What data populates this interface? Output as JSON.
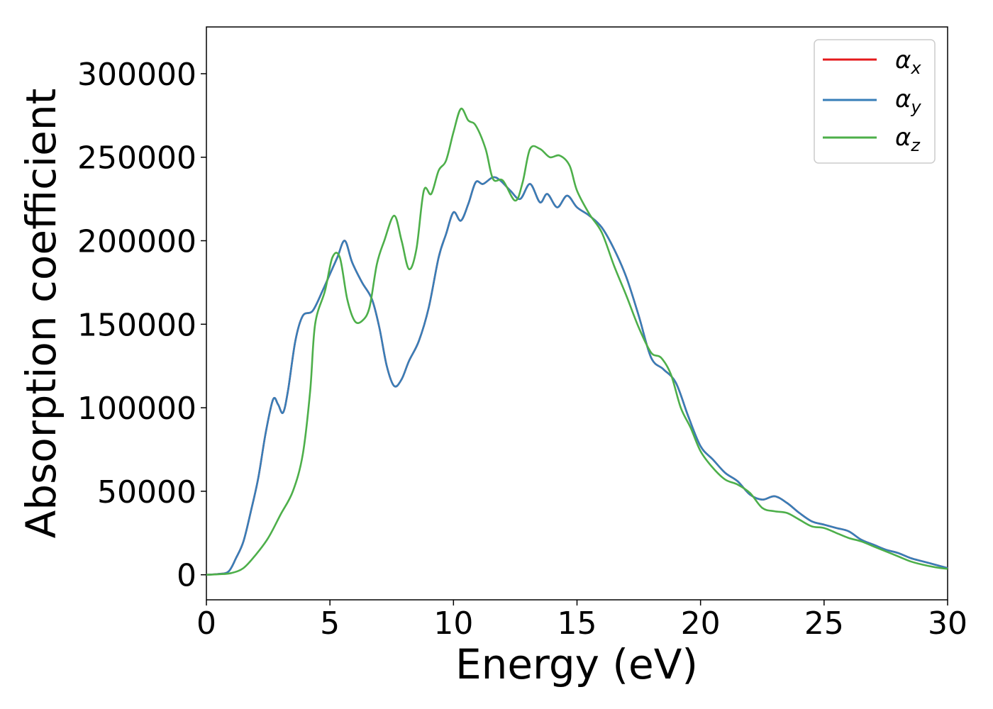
{
  "chart_data": {
    "type": "line",
    "title": "",
    "xlabel": "Energy (eV)",
    "ylabel": "Absorption coefficient",
    "xlim": [
      0,
      30
    ],
    "ylim": [
      -15000,
      328000
    ],
    "xticks": [
      0,
      5,
      10,
      15,
      20,
      25,
      30
    ],
    "yticks": [
      0,
      50000,
      100000,
      150000,
      200000,
      250000,
      300000
    ],
    "xtick_labels": [
      "0",
      "5",
      "10",
      "15",
      "20",
      "25",
      "30"
    ],
    "ytick_labels": [
      "0",
      "50000",
      "100000",
      "150000",
      "200000",
      "250000",
      "300000"
    ],
    "grid": false,
    "legend_position": "top-right",
    "legend": [
      {
        "symbol": "α",
        "sub": "x",
        "color": "#e41a1c"
      },
      {
        "symbol": "α",
        "sub": "y",
        "color": "#377eb8"
      },
      {
        "symbol": "α",
        "sub": "z",
        "color": "#4daf4a"
      }
    ],
    "series": [
      {
        "name": "αx",
        "color": "#e41a1c",
        "points": [
          [
            0,
            0
          ],
          [
            0.5,
            500
          ],
          [
            0.9,
            2000
          ],
          [
            1.2,
            10000
          ],
          [
            1.5,
            20000
          ],
          [
            1.8,
            38000
          ],
          [
            2.1,
            58000
          ],
          [
            2.4,
            85000
          ],
          [
            2.7,
            105000
          ],
          [
            2.9,
            102000
          ],
          [
            3.1,
            97000
          ],
          [
            3.3,
            110000
          ],
          [
            3.6,
            140000
          ],
          [
            3.9,
            155000
          ],
          [
            4.3,
            158000
          ],
          [
            4.7,
            170000
          ],
          [
            5.0,
            180000
          ],
          [
            5.3,
            190000
          ],
          [
            5.6,
            200000
          ],
          [
            5.9,
            187000
          ],
          [
            6.3,
            175000
          ],
          [
            6.7,
            165000
          ],
          [
            7.0,
            148000
          ],
          [
            7.3,
            125000
          ],
          [
            7.6,
            113000
          ],
          [
            7.9,
            117000
          ],
          [
            8.2,
            128000
          ],
          [
            8.6,
            140000
          ],
          [
            9.0,
            160000
          ],
          [
            9.4,
            190000
          ],
          [
            9.7,
            204000
          ],
          [
            10.0,
            217000
          ],
          [
            10.3,
            212000
          ],
          [
            10.6,
            222000
          ],
          [
            10.9,
            235000
          ],
          [
            11.2,
            234000
          ],
          [
            11.6,
            238000
          ],
          [
            11.9,
            236000
          ],
          [
            12.3,
            230000
          ],
          [
            12.7,
            225000
          ],
          [
            13.1,
            234000
          ],
          [
            13.5,
            223000
          ],
          [
            13.8,
            228000
          ],
          [
            14.2,
            220000
          ],
          [
            14.6,
            227000
          ],
          [
            15.0,
            220000
          ],
          [
            15.5,
            215000
          ],
          [
            16.0,
            208000
          ],
          [
            16.5,
            195000
          ],
          [
            17.0,
            178000
          ],
          [
            17.5,
            155000
          ],
          [
            18.0,
            130000
          ],
          [
            18.5,
            123000
          ],
          [
            19.0,
            115000
          ],
          [
            19.5,
            95000
          ],
          [
            20.0,
            77000
          ],
          [
            20.5,
            69000
          ],
          [
            21.0,
            61000
          ],
          [
            21.5,
            56000
          ],
          [
            22.0,
            48000
          ],
          [
            22.5,
            45000
          ],
          [
            23.0,
            47000
          ],
          [
            23.5,
            43000
          ],
          [
            24.0,
            37000
          ],
          [
            24.5,
            32000
          ],
          [
            25.0,
            30000
          ],
          [
            25.5,
            28000
          ],
          [
            26.0,
            26000
          ],
          [
            26.5,
            21000
          ],
          [
            27.0,
            18000
          ],
          [
            27.5,
            15000
          ],
          [
            28.0,
            13000
          ],
          [
            28.5,
            10000
          ],
          [
            29.0,
            8000
          ],
          [
            29.5,
            6000
          ],
          [
            30.0,
            4000
          ]
        ]
      },
      {
        "name": "αy",
        "color": "#377eb8",
        "points": [
          [
            0,
            0
          ],
          [
            0.5,
            500
          ],
          [
            0.9,
            2000
          ],
          [
            1.2,
            10000
          ],
          [
            1.5,
            20000
          ],
          [
            1.8,
            38000
          ],
          [
            2.1,
            58000
          ],
          [
            2.4,
            85000
          ],
          [
            2.7,
            105000
          ],
          [
            2.9,
            102000
          ],
          [
            3.1,
            97000
          ],
          [
            3.3,
            110000
          ],
          [
            3.6,
            140000
          ],
          [
            3.9,
            155000
          ],
          [
            4.3,
            158000
          ],
          [
            4.7,
            170000
          ],
          [
            5.0,
            180000
          ],
          [
            5.3,
            190000
          ],
          [
            5.6,
            200000
          ],
          [
            5.9,
            187000
          ],
          [
            6.3,
            175000
          ],
          [
            6.7,
            165000
          ],
          [
            7.0,
            148000
          ],
          [
            7.3,
            125000
          ],
          [
            7.6,
            113000
          ],
          [
            7.9,
            117000
          ],
          [
            8.2,
            128000
          ],
          [
            8.6,
            140000
          ],
          [
            9.0,
            160000
          ],
          [
            9.4,
            190000
          ],
          [
            9.7,
            204000
          ],
          [
            10.0,
            217000
          ],
          [
            10.3,
            212000
          ],
          [
            10.6,
            222000
          ],
          [
            10.9,
            235000
          ],
          [
            11.2,
            234000
          ],
          [
            11.6,
            238000
          ],
          [
            11.9,
            236000
          ],
          [
            12.3,
            230000
          ],
          [
            12.7,
            225000
          ],
          [
            13.1,
            234000
          ],
          [
            13.5,
            223000
          ],
          [
            13.8,
            228000
          ],
          [
            14.2,
            220000
          ],
          [
            14.6,
            227000
          ],
          [
            15.0,
            220000
          ],
          [
            15.5,
            215000
          ],
          [
            16.0,
            208000
          ],
          [
            16.5,
            195000
          ],
          [
            17.0,
            178000
          ],
          [
            17.5,
            155000
          ],
          [
            18.0,
            130000
          ],
          [
            18.5,
            123000
          ],
          [
            19.0,
            115000
          ],
          [
            19.5,
            95000
          ],
          [
            20.0,
            77000
          ],
          [
            20.5,
            69000
          ],
          [
            21.0,
            61000
          ],
          [
            21.5,
            56000
          ],
          [
            22.0,
            48000
          ],
          [
            22.5,
            45000
          ],
          [
            23.0,
            47000
          ],
          [
            23.5,
            43000
          ],
          [
            24.0,
            37000
          ],
          [
            24.5,
            32000
          ],
          [
            25.0,
            30000
          ],
          [
            25.5,
            28000
          ],
          [
            26.0,
            26000
          ],
          [
            26.5,
            21000
          ],
          [
            27.0,
            18000
          ],
          [
            27.5,
            15000
          ],
          [
            28.0,
            13000
          ],
          [
            28.5,
            10000
          ],
          [
            29.0,
            8000
          ],
          [
            29.5,
            6000
          ],
          [
            30.0,
            4000
          ]
        ]
      },
      {
        "name": "αz",
        "color": "#4daf4a",
        "points": [
          [
            0,
            0
          ],
          [
            0.5,
            300
          ],
          [
            1.0,
            1000
          ],
          [
            1.5,
            4000
          ],
          [
            2.0,
            12000
          ],
          [
            2.5,
            22000
          ],
          [
            3.0,
            36000
          ],
          [
            3.5,
            50000
          ],
          [
            3.9,
            72000
          ],
          [
            4.2,
            110000
          ],
          [
            4.4,
            150000
          ],
          [
            4.8,
            170000
          ],
          [
            5.1,
            190000
          ],
          [
            5.4,
            190000
          ],
          [
            5.7,
            165000
          ],
          [
            6.0,
            152000
          ],
          [
            6.3,
            152000
          ],
          [
            6.6,
            160000
          ],
          [
            6.9,
            186000
          ],
          [
            7.2,
            200000
          ],
          [
            7.6,
            215000
          ],
          [
            7.9,
            200000
          ],
          [
            8.2,
            183000
          ],
          [
            8.5,
            195000
          ],
          [
            8.8,
            230000
          ],
          [
            9.1,
            228000
          ],
          [
            9.4,
            242000
          ],
          [
            9.7,
            248000
          ],
          [
            10.0,
            265000
          ],
          [
            10.3,
            279000
          ],
          [
            10.6,
            272000
          ],
          [
            10.9,
            269000
          ],
          [
            11.3,
            255000
          ],
          [
            11.6,
            237000
          ],
          [
            12.0,
            236000
          ],
          [
            12.5,
            224000
          ],
          [
            12.8,
            235000
          ],
          [
            13.1,
            255000
          ],
          [
            13.5,
            255000
          ],
          [
            13.9,
            250000
          ],
          [
            14.3,
            251000
          ],
          [
            14.7,
            245000
          ],
          [
            15.0,
            230000
          ],
          [
            15.5,
            216000
          ],
          [
            16.0,
            205000
          ],
          [
            16.5,
            185000
          ],
          [
            17.0,
            167000
          ],
          [
            17.5,
            148000
          ],
          [
            18.0,
            133000
          ],
          [
            18.4,
            130000
          ],
          [
            18.8,
            120000
          ],
          [
            19.2,
            100000
          ],
          [
            19.6,
            88000
          ],
          [
            20.0,
            74000
          ],
          [
            20.5,
            64000
          ],
          [
            21.0,
            57000
          ],
          [
            21.5,
            54000
          ],
          [
            22.0,
            49000
          ],
          [
            22.5,
            40000
          ],
          [
            23.0,
            38000
          ],
          [
            23.5,
            37000
          ],
          [
            24.0,
            33000
          ],
          [
            24.5,
            29000
          ],
          [
            25.0,
            28000
          ],
          [
            25.5,
            25000
          ],
          [
            26.0,
            22000
          ],
          [
            26.5,
            20000
          ],
          [
            27.0,
            17000
          ],
          [
            27.5,
            14000
          ],
          [
            28.0,
            11000
          ],
          [
            28.5,
            8000
          ],
          [
            29.0,
            6000
          ],
          [
            29.5,
            4500
          ],
          [
            30.0,
            3500
          ]
        ]
      }
    ]
  }
}
